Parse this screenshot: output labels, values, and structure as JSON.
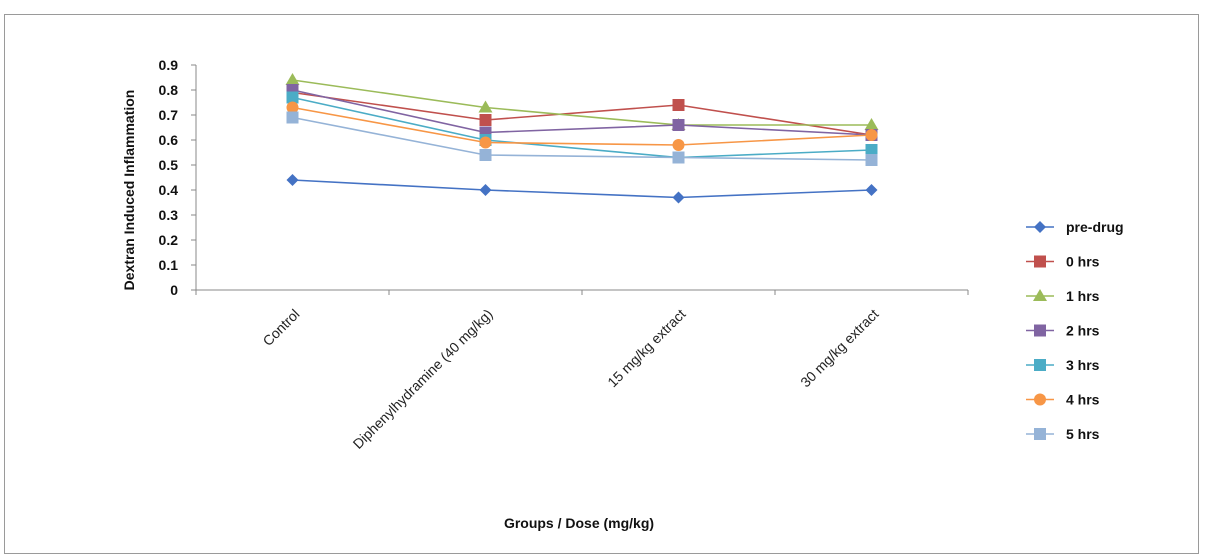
{
  "chart_data": {
    "type": "line",
    "title": "",
    "xlabel": "Groups / Dose (mg/kg)",
    "ylabel": "Dextran Induced Inflammation",
    "ylim": [
      0,
      0.9
    ],
    "yticks": [
      "0",
      "0.1",
      "0.2",
      "0.3",
      "0.4",
      "0.5",
      "0.6",
      "0.7",
      "0.8",
      "0.9"
    ],
    "grid": false,
    "legend_position": "right",
    "categories": [
      "Control",
      "Diphenylhydramine (40 mg/kg)",
      "15 mg/kg extract",
      "30 mg/kg extract"
    ],
    "series": [
      {
        "name": "pre-drug",
        "color": "#4472c4",
        "marker": "diamond",
        "values": [
          0.44,
          0.4,
          0.37,
          0.4
        ]
      },
      {
        "name": "0 hrs",
        "color": "#c0504d",
        "marker": "square",
        "values": [
          0.79,
          0.68,
          0.74,
          0.62
        ]
      },
      {
        "name": "1 hrs",
        "color": "#9bbb59",
        "marker": "triangle",
        "values": [
          0.84,
          0.73,
          0.66,
          0.66
        ]
      },
      {
        "name": "2 hrs",
        "color": "#8064a2",
        "marker": "square",
        "values": [
          0.8,
          0.63,
          0.66,
          0.62
        ]
      },
      {
        "name": "3 hrs",
        "color": "#4bacc6",
        "marker": "square",
        "values": [
          0.77,
          0.6,
          0.53,
          0.56
        ]
      },
      {
        "name": "4 hrs",
        "color": "#f79646",
        "marker": "circle",
        "values": [
          0.73,
          0.59,
          0.58,
          0.62
        ]
      },
      {
        "name": "5 hrs",
        "color": "#95b3d7",
        "marker": "square",
        "values": [
          0.69,
          0.54,
          0.53,
          0.52
        ]
      }
    ]
  }
}
